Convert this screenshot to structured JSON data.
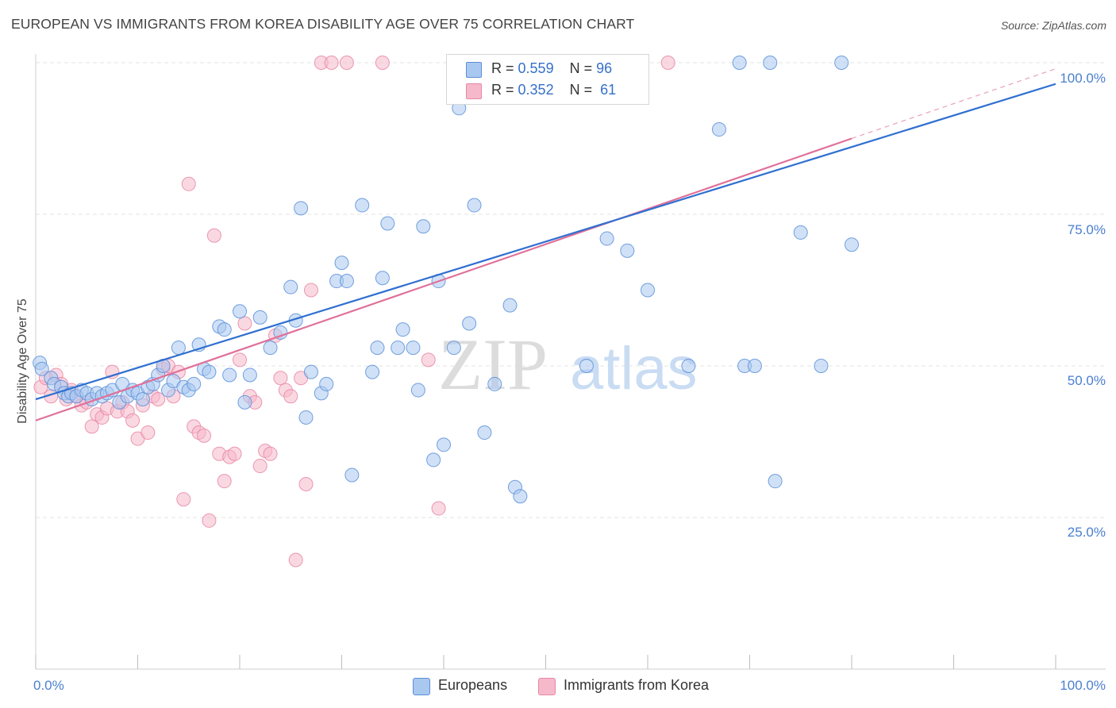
{
  "title": "EUROPEAN VS IMMIGRANTS FROM KOREA DISABILITY AGE OVER 75 CORRELATION CHART",
  "source": "Source: ZipAtlas.com",
  "watermark": {
    "zip": "ZIP",
    "atlas": "atlas"
  },
  "colors": {
    "europeans_fill": "#a9c8f0",
    "europeans_stroke": "#5b8fd8",
    "europeans_line": "#2f6fd0",
    "korea_fill": "#f6b8cb",
    "korea_stroke": "#e887a6",
    "korea_line": "#e0709a",
    "grid": "#e3e3e3",
    "tick_label": "#4a7fd0"
  },
  "legend": {
    "rows": [
      {
        "r_label": "R =",
        "r_value": "0.559",
        "n_label": "N =",
        "n_value": "96"
      },
      {
        "r_label": "R =",
        "r_value": "0.352",
        "n_label": "N =",
        "n_value": "61"
      }
    ]
  },
  "bottom_legend": {
    "europeans": "Europeans",
    "korea": "Immigrants from Korea"
  },
  "chart_data": {
    "type": "scatter",
    "title": "EUROPEAN VS IMMIGRANTS FROM KOREA DISABILITY AGE OVER 75 CORRELATION CHART",
    "xlabel": "",
    "ylabel": "Disability Age Over 75",
    "xlim": [
      0,
      100
    ],
    "ylim": [
      0,
      102
    ],
    "x_tick_labels": [
      "0.0%",
      "100.0%"
    ],
    "y_ticks": [
      25,
      50,
      75,
      100
    ],
    "y_tick_labels": [
      "25.0%",
      "50.0%",
      "75.0%",
      "100.0%"
    ],
    "grid": "horizontal dashed",
    "legend_position": "top-center",
    "series": [
      {
        "name": "Europeans",
        "r": 0.559,
        "n": 96,
        "trend": {
          "x0": 0,
          "y0": 44.5,
          "x1": 100,
          "y1": 96.5,
          "dashed_beyond": false
        },
        "points": [
          [
            0.4,
            50.5
          ],
          [
            0.6,
            49.5
          ],
          [
            1.5,
            48
          ],
          [
            1.8,
            47
          ],
          [
            2.5,
            46.5
          ],
          [
            2.8,
            45.5
          ],
          [
            3.2,
            45
          ],
          [
            3.5,
            45.5
          ],
          [
            4,
            45
          ],
          [
            4.5,
            46
          ],
          [
            5,
            45.5
          ],
          [
            5.5,
            44.5
          ],
          [
            6,
            45.5
          ],
          [
            6.5,
            45
          ],
          [
            7,
            45.5
          ],
          [
            7.5,
            46
          ],
          [
            8.2,
            44
          ],
          [
            8.5,
            47
          ],
          [
            9,
            45
          ],
          [
            9.5,
            46
          ],
          [
            10,
            45.5
          ],
          [
            10.5,
            44.5
          ],
          [
            11,
            46.5
          ],
          [
            11.5,
            47
          ],
          [
            12,
            48.5
          ],
          [
            12.5,
            50
          ],
          [
            13,
            46
          ],
          [
            13.5,
            47.5
          ],
          [
            14,
            53
          ],
          [
            14.5,
            46.5
          ],
          [
            15,
            46
          ],
          [
            15.5,
            47
          ],
          [
            16,
            53.5
          ],
          [
            16.5,
            49.5
          ],
          [
            17,
            49
          ],
          [
            18,
            56.5
          ],
          [
            18.5,
            56
          ],
          [
            19,
            48.5
          ],
          [
            20,
            59
          ],
          [
            20.5,
            44
          ],
          [
            21,
            48.5
          ],
          [
            22,
            58
          ],
          [
            23,
            53
          ],
          [
            24,
            55.5
          ],
          [
            25,
            63
          ],
          [
            25.5,
            57.5
          ],
          [
            26,
            76
          ],
          [
            26.5,
            41.5
          ],
          [
            27,
            49
          ],
          [
            28,
            45.5
          ],
          [
            28.5,
            47
          ],
          [
            29.5,
            64
          ],
          [
            30,
            67
          ],
          [
            30.5,
            64
          ],
          [
            31,
            32
          ],
          [
            32,
            76.5
          ],
          [
            33,
            49
          ],
          [
            33.5,
            53
          ],
          [
            34,
            64.5
          ],
          [
            34.5,
            73.5
          ],
          [
            35.5,
            53
          ],
          [
            36,
            56
          ],
          [
            37,
            53
          ],
          [
            37.5,
            46
          ],
          [
            38,
            73
          ],
          [
            39,
            34.5
          ],
          [
            39.5,
            64
          ],
          [
            40,
            37
          ],
          [
            41,
            53
          ],
          [
            41.5,
            92.5
          ],
          [
            42.5,
            57
          ],
          [
            43,
            76.5
          ],
          [
            44,
            39
          ],
          [
            45,
            47
          ],
          [
            46.5,
            60
          ],
          [
            46.5,
            100
          ],
          [
            47,
            30
          ],
          [
            47.5,
            28.5
          ],
          [
            48,
            100
          ],
          [
            48.5,
            100
          ],
          [
            51,
            100
          ],
          [
            54,
            50
          ],
          [
            56,
            71
          ],
          [
            58,
            69
          ],
          [
            60,
            62.5
          ],
          [
            64,
            50
          ],
          [
            67,
            89
          ],
          [
            69,
            100
          ],
          [
            69.5,
            50
          ],
          [
            70.5,
            50
          ],
          [
            72,
            100
          ],
          [
            72.5,
            31
          ],
          [
            75,
            72
          ],
          [
            77,
            50
          ],
          [
            79,
            100
          ],
          [
            80,
            70
          ]
        ]
      },
      {
        "name": "Immigrants from Korea",
        "r": 0.352,
        "n": 61,
        "trend": {
          "x0": 0,
          "y0": 41,
          "x1": 80,
          "y1": 87.5,
          "dashed_beyond": true,
          "dashed_to": [
            100,
            99
          ]
        },
        "points": [
          [
            0.5,
            46.5
          ],
          [
            1,
            48
          ],
          [
            1.5,
            45
          ],
          [
            2,
            48.5
          ],
          [
            2.5,
            47
          ],
          [
            3,
            44.5
          ],
          [
            3.5,
            46
          ],
          [
            4,
            45
          ],
          [
            4.5,
            43.5
          ],
          [
            5,
            44
          ],
          [
            5.5,
            40
          ],
          [
            6,
            42
          ],
          [
            6.5,
            41.5
          ],
          [
            7,
            43
          ],
          [
            7.5,
            49
          ],
          [
            8,
            42.5
          ],
          [
            8.5,
            44
          ],
          [
            9,
            42.5
          ],
          [
            9.5,
            41
          ],
          [
            10,
            38
          ],
          [
            10.5,
            43.5
          ],
          [
            11,
            39
          ],
          [
            11.5,
            45
          ],
          [
            12,
            44.5
          ],
          [
            12.5,
            49.5
          ],
          [
            13,
            50
          ],
          [
            13.5,
            45
          ],
          [
            14,
            49
          ],
          [
            14.5,
            28
          ],
          [
            15,
            80
          ],
          [
            15.5,
            40
          ],
          [
            16,
            39
          ],
          [
            16.5,
            38.5
          ],
          [
            17,
            24.5
          ],
          [
            17.5,
            71.5
          ],
          [
            18,
            35.5
          ],
          [
            18.5,
            31
          ],
          [
            19,
            35
          ],
          [
            19.5,
            35.5
          ],
          [
            20,
            51
          ],
          [
            20.5,
            57
          ],
          [
            21,
            45
          ],
          [
            21.5,
            44
          ],
          [
            22,
            33.5
          ],
          [
            22.5,
            36
          ],
          [
            23,
            35.5
          ],
          [
            23.5,
            55
          ],
          [
            24,
            48
          ],
          [
            24.5,
            46
          ],
          [
            25,
            45
          ],
          [
            25.5,
            18
          ],
          [
            26,
            48
          ],
          [
            26.5,
            30.5
          ],
          [
            27,
            62.5
          ],
          [
            28,
            100
          ],
          [
            29,
            100
          ],
          [
            30.5,
            100
          ],
          [
            34,
            100
          ],
          [
            38.5,
            51
          ],
          [
            39.5,
            26.5
          ],
          [
            62,
            100
          ]
        ]
      }
    ]
  }
}
